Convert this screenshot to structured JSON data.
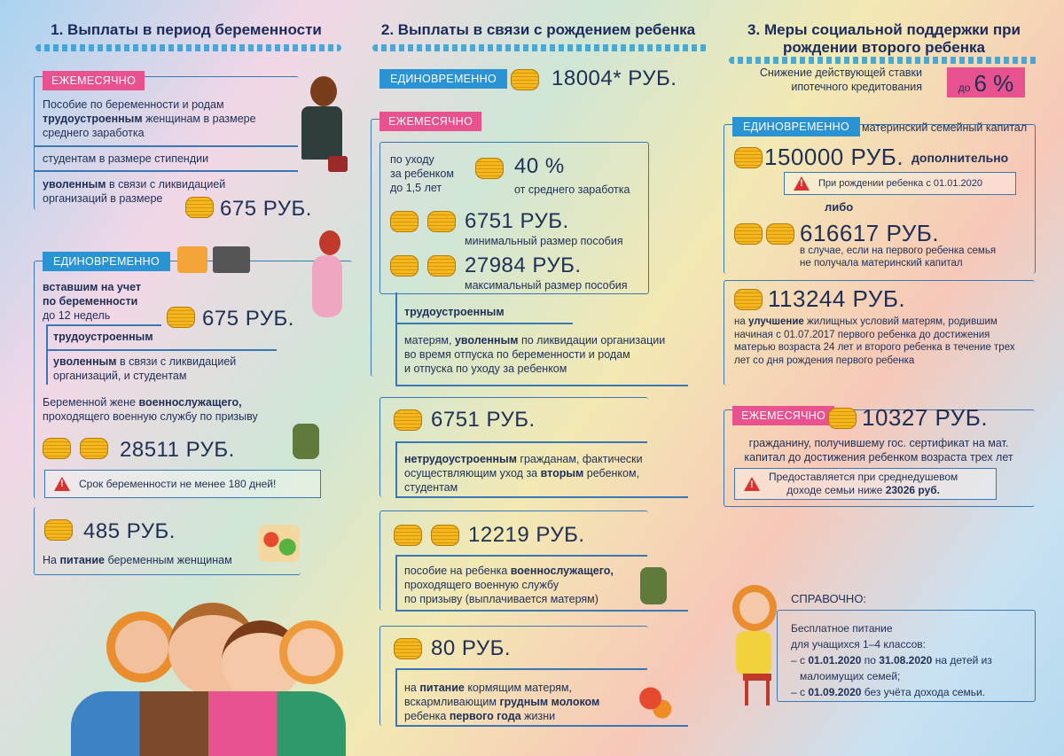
{
  "col1": {
    "title": "1. Выплаты в период беременности",
    "monthly_tag": "ЕЖЕМЕСЯЧНО",
    "p1_a": "Пособие по беременности и родам",
    "p1_b": "трудоустроенным",
    "p1_c": "женщинам в размере",
    "p1_d": "среднего заработка",
    "p2": "студентам в размере стипендии",
    "p3_a": "уволенным",
    "p3_b": "в связи с ликвидацией",
    "p3_c": "организаций в размере",
    "amount1": "675 РУБ.",
    "once_tag": "ЕДИНОВРЕМЕННО",
    "q1": "вставшим на учет",
    "q2": "по беременности",
    "q3": "до 12 недель",
    "amount2": "675 РУБ.",
    "q4": "трудоустроенным",
    "q5_a": "уволенным",
    "q5_b": "в связи с ликвидацией",
    "q5_c": "организаций, и студентам",
    "mil_a": "Беременной жене",
    "mil_b": "военнослужащего,",
    "mil_c": "проходящего военную службу по призыву",
    "amount3": "28511 РУБ.",
    "warn": "Срок беременности не менее 180 дней!",
    "amount4": "485 РУБ.",
    "food_a": "На",
    "food_b": "питание",
    "food_c": "беременным женщинам"
  },
  "col2": {
    "title": "2. Выплаты в связи с рождением ребенка",
    "once_tag": "ЕДИНОВРЕМЕННО",
    "once_amount": "18004* РУБ.",
    "monthly_tag": "ЕЖЕМЕСЯЧНО",
    "care1": "по уходу",
    "care2": "за ребенком",
    "care3": "до 1,5 лет",
    "pct": "40 %",
    "pct_note": "от среднего заработка",
    "min_amount": "6751 РУБ.",
    "min_note": "минимальный размер пособия",
    "max_amount": "27984 РУБ.",
    "max_note": "максимальный размер пособия",
    "employed": "трудоустроенным",
    "fired_a": "матерям,",
    "fired_b": "уволенным",
    "fired_c": "по ликвидации организации",
    "fired_d": "во время отпуска по беременности и родам",
    "fired_e": "и отпуска по уходу за ребенком",
    "amount_b": "6751 РУБ.",
    "unemp_a": "нетрудоустроенным",
    "unemp_b": "гражданам, фактически",
    "unemp_c": "осуществляющим уход за",
    "unemp_d": "вторым",
    "unemp_e": "ребенком,",
    "unemp_f": "студентам",
    "amount_c": "12219 РУБ.",
    "mil_a": "пособие на ребенка",
    "mil_b": "военнослужащего,",
    "mil_c": "проходящего военную службу",
    "mil_d": "по призыву (выплачивается матерям)",
    "amount_d": "80 РУБ.",
    "food_a": "на",
    "food_b": "питание",
    "food_c": "кормящим матерям,",
    "food_d": "вскармливающим",
    "food_e": "грудным молоком",
    "food_f": "ребенка",
    "food_g": "первого года",
    "food_h": "жизни"
  },
  "col3": {
    "title1": "3. Меры социальной поддержки при",
    "title2": "рождении второго ребенка",
    "rate1": "Снижение действующей ставки",
    "rate2": "ипотечного кредитования",
    "rate_pre": "до",
    "rate_val": "6 %",
    "once_tag": "ЕДИНОВРЕМЕННО",
    "mat_cap": "материнский семейный капитал",
    "amount1": "150000 РУБ.",
    "extra": "дополнительно",
    "note_2020": "При рождении ребенка с 01.01.2020",
    "or": "либо",
    "amount2": "616617 РУБ.",
    "case1": "в случае, если на первого ребенка семья",
    "case2": "не получала материнский капитал",
    "amount3": "113244 РУБ.",
    "imp_a": "на",
    "imp_b": "улучшение",
    "imp_c": "жилищных условий матерям, родившим",
    "imp_d": "начиная с 01.07.2017 первого ребенка до достижения",
    "imp_e": "матерью возраста 24 лет и второго ребенка в течение трех",
    "imp_f": "лет со дня рождения первого ребенка",
    "monthly_tag": "ЕЖЕМЕСЯЧНО",
    "amount4": "10327 РУБ.",
    "cit1": "гражданину, получившему гос. сертификат на мат.",
    "cit2": "капитал до достижения ребенком возраста трех лет",
    "warn1": "Предоставляется при среднедушевом",
    "warn2": "доходе семьи ниже",
    "warn3": "23026 руб.",
    "ref_title": "СПРАВОЧНО:",
    "ref1": "Бесплатное питание",
    "ref2": "для учащихся 1–4 классов:",
    "ref3_a": "– с",
    "ref3_b": "01.01.2020",
    "ref3_c": "по",
    "ref3_d": "31.08.2020",
    "ref3_e": "на детей из",
    "ref4": "малоимущих семей;",
    "ref5_a": "– с",
    "ref5_b": "01.09.2020",
    "ref5_c": "без учёта дохода семьи."
  },
  "colors": {
    "pink": "#e8528e",
    "blue": "#2a93d4",
    "border": "#3a78b5",
    "text": "#1f2f55"
  }
}
